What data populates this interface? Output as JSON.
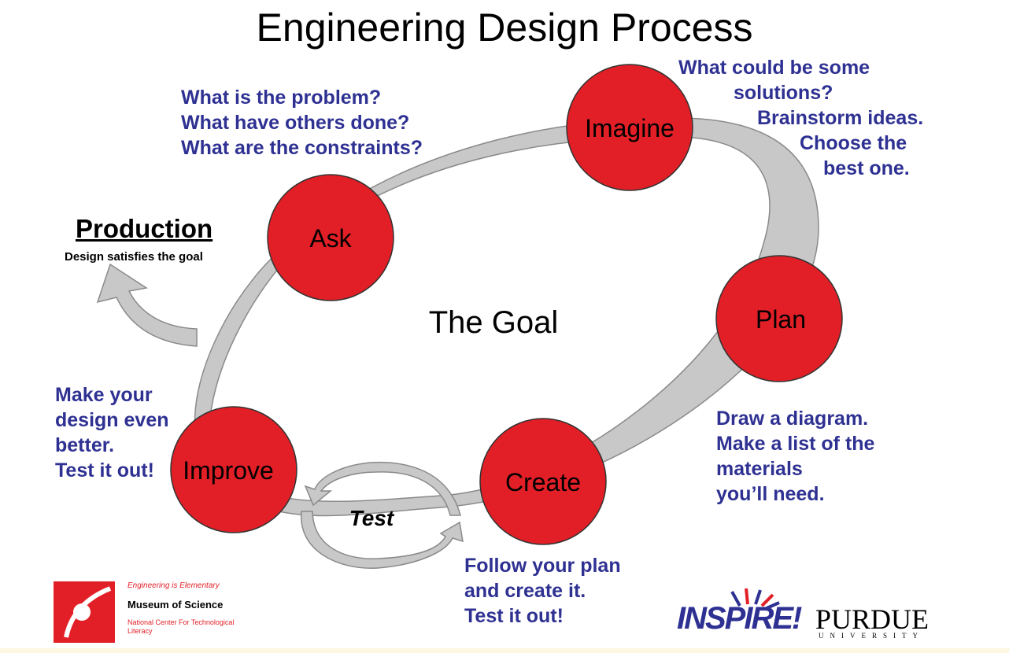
{
  "title": "Engineering Design Process",
  "center_label": "The Goal",
  "nodes": [
    {
      "id": "ask",
      "label": "Ask"
    },
    {
      "id": "imagine",
      "label": "Imagine"
    },
    {
      "id": "plan",
      "label": "Plan"
    },
    {
      "id": "create",
      "label": "Create"
    },
    {
      "id": "improve",
      "label": "Improve"
    }
  ],
  "notes": {
    "ask": [
      "What is the problem?",
      "What have others done?",
      "What are the constraints?"
    ],
    "imagine": [
      "What could be some",
      "solutions?",
      "Brainstorm ideas.",
      "Choose the",
      "best one."
    ],
    "plan": [
      "Draw a diagram.",
      "Make a list of the",
      "materials",
      "you’ll need."
    ],
    "create": [
      "Follow your plan",
      "and create it.",
      "Test it out!"
    ],
    "improve": [
      "Make your",
      "design even",
      "better.",
      "Test it out!"
    ]
  },
  "test_label": "Test",
  "production": {
    "title": "Production",
    "subtitle": "Design satisfies the goal"
  },
  "logos": {
    "museum": {
      "tagline": "Engineering is Elementary",
      "name": "Museum of Science",
      "sub": "National Center For Technological Literacy"
    },
    "inspire": "INSPIRE!",
    "purdue": {
      "name": "PURDUE",
      "sub": "UNIVERSITY"
    }
  },
  "colors": {
    "node_fill": "#e21f26",
    "arrow_fill": "#c8c8c8",
    "note_text": "#2e3192",
    "brand_red": "#e21f26",
    "brand_purple": "#2e3192"
  }
}
